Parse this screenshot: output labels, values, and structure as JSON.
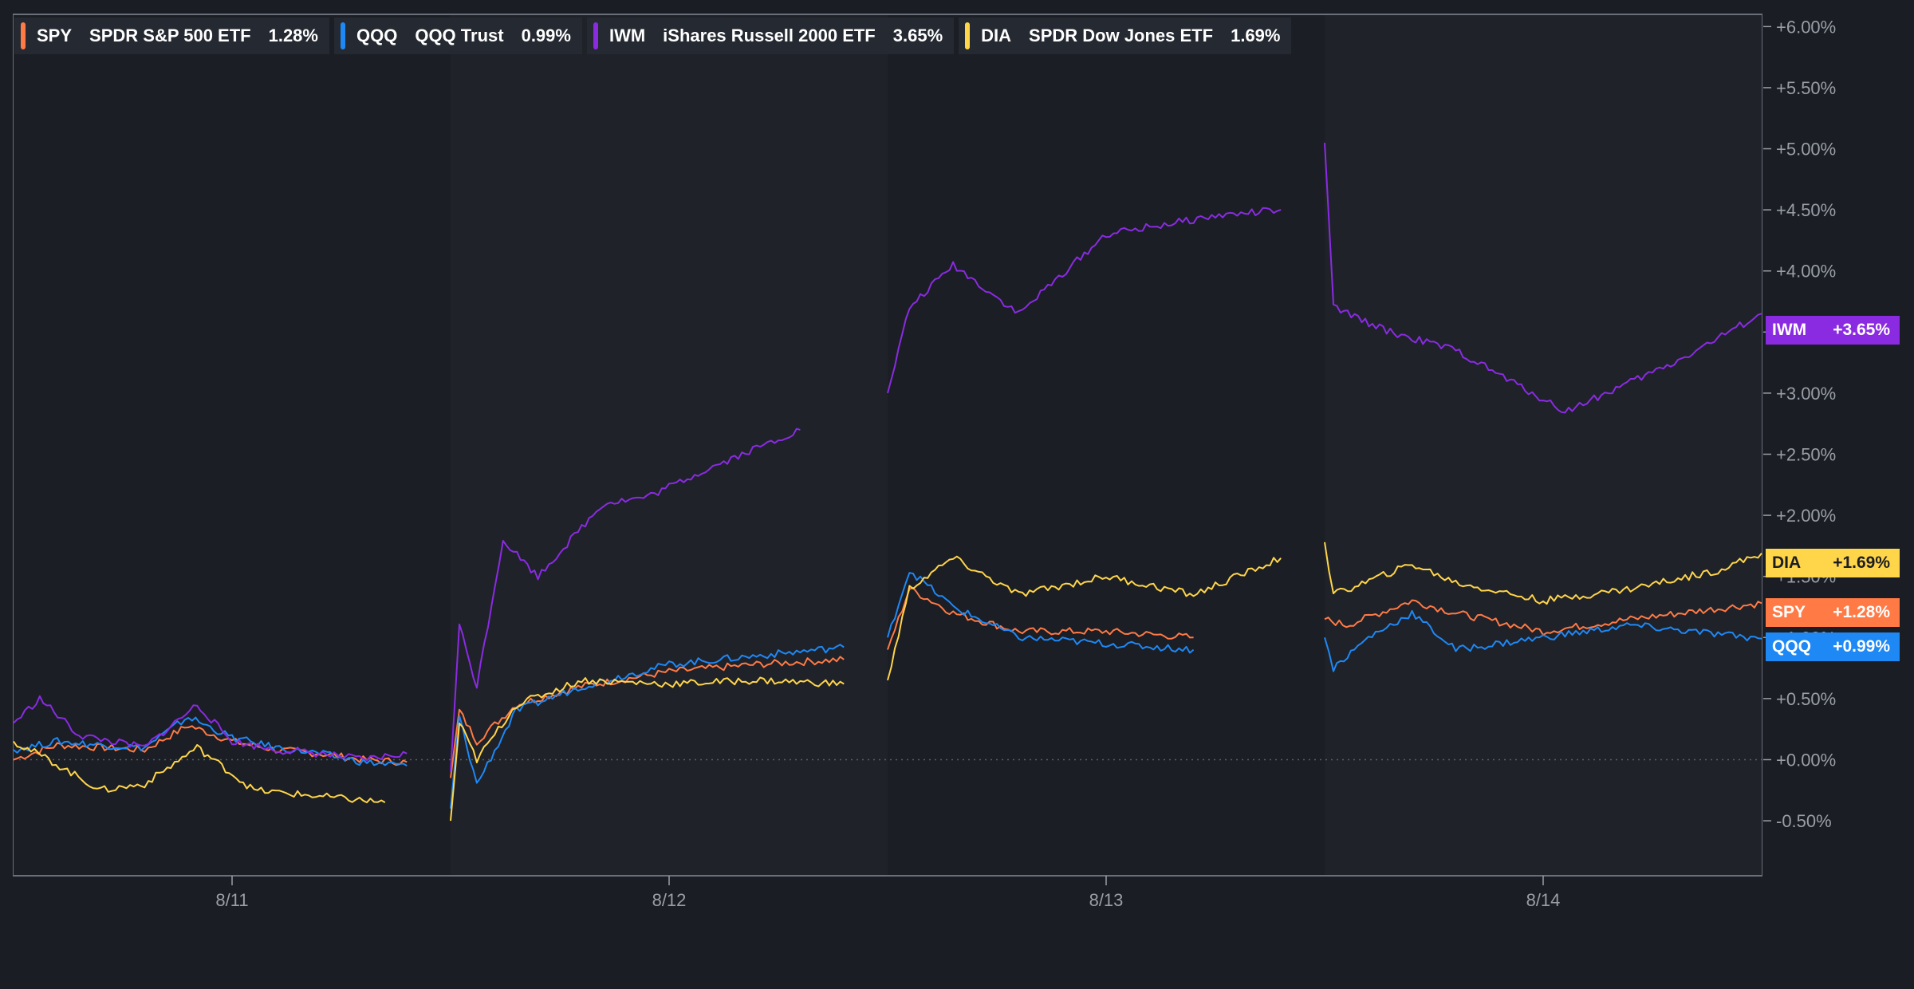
{
  "colors": {
    "background": "#1a1d23",
    "plot_bg": "#1f2229",
    "plot_bg_alt": "#1b1e24",
    "border": "#6b6f78",
    "tick_text": "#9a9ea6",
    "SPY": "#ff7a45",
    "QQQ": "#1e88f5",
    "IWM": "#8a2be2",
    "DIA": "#ffd54a"
  },
  "legend": [
    {
      "symbol": "SPY",
      "name": "SPDR S&P 500 ETF",
      "value": "1.28%",
      "color": "#ff7a45"
    },
    {
      "symbol": "QQQ",
      "name": "QQQ Trust",
      "value": "0.99%",
      "color": "#1e88f5"
    },
    {
      "symbol": "IWM",
      "name": "iShares Russell 2000 ETF",
      "value": "3.65%",
      "color": "#8a2be2"
    },
    {
      "symbol": "DIA",
      "name": "SPDR Dow Jones ETF",
      "value": "1.69%",
      "color": "#ffd54a"
    }
  ],
  "badges": [
    {
      "symbol": "IWM",
      "value": "+3.65%",
      "bg": "#8a2be2",
      "fg": "#ffffff"
    },
    {
      "symbol": "DIA",
      "value": "+1.69%",
      "bg": "#ffd54a",
      "fg": "#1a1d23"
    },
    {
      "symbol": "SPY",
      "value": "+1.28%",
      "bg": "#ff7a45",
      "fg": "#ffffff"
    },
    {
      "symbol": "QQQ",
      "value": "+0.99%",
      "bg": "#1e88f5",
      "fg": "#ffffff"
    }
  ],
  "chart_data": {
    "type": "line",
    "x_ticks": [
      "8/11",
      "8/12",
      "8/13",
      "8/14"
    ],
    "x_range": [
      0,
      4
    ],
    "y_ticks": [
      "+6.00%",
      "+5.50%",
      "+5.00%",
      "+4.50%",
      "+4.00%",
      "+3.50%",
      "+3.00%",
      "+2.50%",
      "+2.00%",
      "+1.50%",
      "+1.00%",
      "+0.50%",
      "+0.00%",
      "-0.50%"
    ],
    "ylim": [
      -0.95,
      6.1
    ],
    "baseline": 0,
    "sessions": [
      [
        0,
        1
      ],
      [
        1,
        2
      ],
      [
        2,
        3
      ],
      [
        3,
        4
      ]
    ],
    "grid": false,
    "legend_position": "top-left",
    "series": [
      {
        "name": "SPY",
        "color": "#ff7a45",
        "points": [
          [
            0,
            0.0
          ],
          [
            0.1,
            0.12
          ],
          [
            0.2,
            0.1
          ],
          [
            0.3,
            0.08
          ],
          [
            0.4,
            0.28
          ],
          [
            0.5,
            0.15
          ],
          [
            0.6,
            0.08
          ],
          [
            0.7,
            0.05
          ],
          [
            0.8,
            0.0
          ],
          [
            0.9,
            -0.02
          ],
          [
            1.0,
            -0.15
          ],
          [
            1.02,
            0.4
          ],
          [
            1.06,
            0.15
          ],
          [
            1.15,
            0.45
          ],
          [
            1.3,
            0.6
          ],
          [
            1.5,
            0.72
          ],
          [
            1.7,
            0.78
          ],
          [
            1.9,
            0.82
          ],
          [
            2.0,
            0.9
          ],
          [
            2.05,
            1.4
          ],
          [
            2.15,
            1.2
          ],
          [
            2.3,
            1.05
          ],
          [
            2.5,
            1.05
          ],
          [
            2.7,
            1.0
          ],
          [
            3.0,
            1.15
          ],
          [
            3.05,
            1.1
          ],
          [
            3.2,
            1.3
          ],
          [
            3.3,
            1.2
          ],
          [
            3.5,
            1.05
          ],
          [
            3.7,
            1.15
          ],
          [
            4.0,
            1.28
          ]
        ]
      },
      {
        "name": "QQQ",
        "color": "#1e88f5",
        "points": [
          [
            0,
            0.08
          ],
          [
            0.1,
            0.15
          ],
          [
            0.2,
            0.12
          ],
          [
            0.3,
            0.1
          ],
          [
            0.4,
            0.35
          ],
          [
            0.5,
            0.18
          ],
          [
            0.6,
            0.1
          ],
          [
            0.7,
            0.05
          ],
          [
            0.8,
            -0.02
          ],
          [
            0.9,
            -0.05
          ],
          [
            1.0,
            -0.4
          ],
          [
            1.02,
            0.35
          ],
          [
            1.06,
            -0.2
          ],
          [
            1.15,
            0.4
          ],
          [
            1.3,
            0.6
          ],
          [
            1.5,
            0.78
          ],
          [
            1.7,
            0.85
          ],
          [
            1.9,
            0.92
          ],
          [
            2.0,
            1.0
          ],
          [
            2.05,
            1.55
          ],
          [
            2.15,
            1.25
          ],
          [
            2.3,
            1.0
          ],
          [
            2.5,
            0.95
          ],
          [
            2.7,
            0.9
          ],
          [
            3.0,
            1.0
          ],
          [
            3.02,
            0.75
          ],
          [
            3.1,
            1.0
          ],
          [
            3.2,
            1.2
          ],
          [
            3.3,
            0.9
          ],
          [
            3.5,
            1.0
          ],
          [
            3.7,
            1.1
          ],
          [
            4.0,
            0.99
          ]
        ]
      },
      {
        "name": "IWM",
        "color": "#8a2be2",
        "points": [
          [
            0,
            0.3
          ],
          [
            0.06,
            0.5
          ],
          [
            0.15,
            0.2
          ],
          [
            0.3,
            0.1
          ],
          [
            0.42,
            0.45
          ],
          [
            0.5,
            0.15
          ],
          [
            0.6,
            0.08
          ],
          [
            0.7,
            0.05
          ],
          [
            0.8,
            0.0
          ],
          [
            0.9,
            0.05
          ],
          [
            1.0,
            -0.1
          ],
          [
            1.02,
            1.1
          ],
          [
            1.06,
            0.6
          ],
          [
            1.12,
            1.8
          ],
          [
            1.2,
            1.5
          ],
          [
            1.35,
            2.1
          ],
          [
            1.45,
            2.15
          ],
          [
            1.6,
            2.4
          ],
          [
            1.8,
            2.7
          ],
          [
            2.0,
            3.0
          ],
          [
            2.05,
            3.7
          ],
          [
            2.15,
            4.05
          ],
          [
            2.3,
            3.65
          ],
          [
            2.5,
            4.3
          ],
          [
            2.75,
            4.45
          ],
          [
            2.9,
            4.5
          ],
          [
            3.0,
            5.05
          ],
          [
            3.02,
            3.7
          ],
          [
            3.15,
            3.5
          ],
          [
            3.3,
            3.35
          ],
          [
            3.55,
            2.85
          ],
          [
            3.8,
            3.25
          ],
          [
            4.0,
            3.65
          ]
        ]
      },
      {
        "name": "DIA",
        "color": "#ffd54a",
        "points": [
          [
            0,
            0.15
          ],
          [
            0.08,
            0.0
          ],
          [
            0.2,
            -0.25
          ],
          [
            0.3,
            -0.2
          ],
          [
            0.42,
            0.1
          ],
          [
            0.55,
            -0.25
          ],
          [
            0.7,
            -0.3
          ],
          [
            0.85,
            -0.35
          ],
          [
            1.0,
            -0.5
          ],
          [
            1.02,
            0.3
          ],
          [
            1.06,
            0.0
          ],
          [
            1.15,
            0.45
          ],
          [
            1.3,
            0.65
          ],
          [
            1.5,
            0.62
          ],
          [
            1.7,
            0.65
          ],
          [
            1.9,
            0.62
          ],
          [
            2.0,
            0.65
          ],
          [
            2.05,
            1.4
          ],
          [
            2.15,
            1.65
          ],
          [
            2.3,
            1.35
          ],
          [
            2.5,
            1.5
          ],
          [
            2.7,
            1.35
          ],
          [
            2.9,
            1.65
          ],
          [
            3.0,
            1.78
          ],
          [
            3.02,
            1.35
          ],
          [
            3.2,
            1.6
          ],
          [
            3.3,
            1.45
          ],
          [
            3.5,
            1.3
          ],
          [
            3.7,
            1.4
          ],
          [
            3.9,
            1.55
          ],
          [
            4.0,
            1.69
          ]
        ]
      }
    ]
  }
}
